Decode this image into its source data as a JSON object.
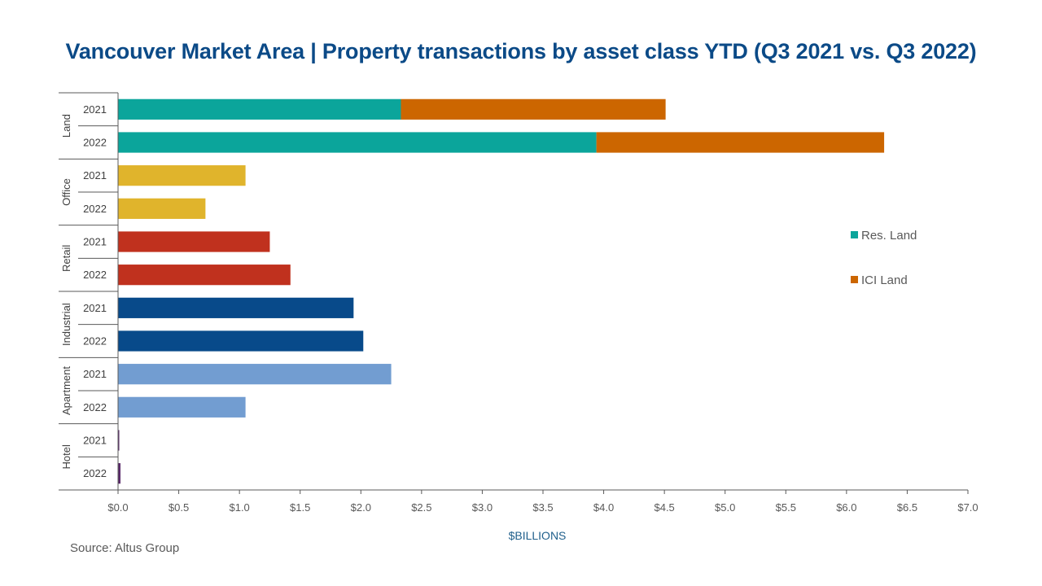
{
  "chart_data": {
    "type": "bar",
    "orientation": "horizontal",
    "stacked": true,
    "title": "Vancouver Market Area | Property transactions by asset class YTD (Q3 2021 vs. Q3 2022)",
    "xlabel": "$BILLIONS",
    "ylabel": "",
    "xlim": [
      0,
      7
    ],
    "x_ticks": [
      "$0.0",
      "$0.5",
      "$1.0",
      "$1.5",
      "$2.0",
      "$2.5",
      "$3.0",
      "$3.5",
      "$4.0",
      "$4.5",
      "$5.0",
      "$5.5",
      "$6.0",
      "$6.5",
      "$7.0"
    ],
    "x_tick_values": [
      0,
      0.5,
      1,
      1.5,
      2,
      2.5,
      3,
      3.5,
      4,
      4.5,
      5,
      5.5,
      6,
      6.5,
      7
    ],
    "grid": false,
    "legend_position": "right",
    "groups": [
      {
        "name": "Land",
        "bars": [
          {
            "year": "2021",
            "segments": [
              {
                "series": "Res. Land",
                "value": 2.33,
                "color": "#0ba59b"
              },
              {
                "series": "ICI Land",
                "value": 2.18,
                "color": "#cc6600"
              }
            ]
          },
          {
            "year": "2022",
            "segments": [
              {
                "series": "Res. Land",
                "value": 3.94,
                "color": "#0ba59b"
              },
              {
                "series": "ICI Land",
                "value": 2.37,
                "color": "#cc6600"
              }
            ]
          }
        ]
      },
      {
        "name": "Office",
        "bars": [
          {
            "year": "2021",
            "segments": [
              {
                "series": "Office",
                "value": 1.05,
                "color": "#e0b42c"
              }
            ]
          },
          {
            "year": "2022",
            "segments": [
              {
                "series": "Office",
                "value": 0.72,
                "color": "#e0b42c"
              }
            ]
          }
        ]
      },
      {
        "name": "Retail",
        "bars": [
          {
            "year": "2021",
            "segments": [
              {
                "series": "Retail",
                "value": 1.25,
                "color": "#c0311e"
              }
            ]
          },
          {
            "year": "2022",
            "segments": [
              {
                "series": "Retail",
                "value": 1.42,
                "color": "#c0311e"
              }
            ]
          }
        ]
      },
      {
        "name": "Industrial",
        "bars": [
          {
            "year": "2021",
            "segments": [
              {
                "series": "Industrial",
                "value": 1.94,
                "color": "#084a8a"
              }
            ]
          },
          {
            "year": "2022",
            "segments": [
              {
                "series": "Industrial",
                "value": 2.02,
                "color": "#084a8a"
              }
            ]
          }
        ]
      },
      {
        "name": "Apartment",
        "bars": [
          {
            "year": "2021",
            "segments": [
              {
                "series": "Apartment",
                "value": 2.25,
                "color": "#729dd1"
              }
            ]
          },
          {
            "year": "2022",
            "segments": [
              {
                "series": "Apartment",
                "value": 1.05,
                "color": "#729dd1"
              }
            ]
          }
        ]
      },
      {
        "name": "Hotel",
        "bars": [
          {
            "year": "2021",
            "segments": [
              {
                "series": "Hotel",
                "value": 0.01,
                "color": "#5a2a6a"
              }
            ]
          },
          {
            "year": "2022",
            "segments": [
              {
                "series": "Hotel",
                "value": 0.02,
                "color": "#5a2a6a"
              }
            ]
          }
        ]
      }
    ],
    "legend": [
      {
        "label": "Res. Land",
        "color": "#0ba59b"
      },
      {
        "label": "ICI Land",
        "color": "#cc6600"
      }
    ],
    "source": "Source:  Altus Group"
  }
}
